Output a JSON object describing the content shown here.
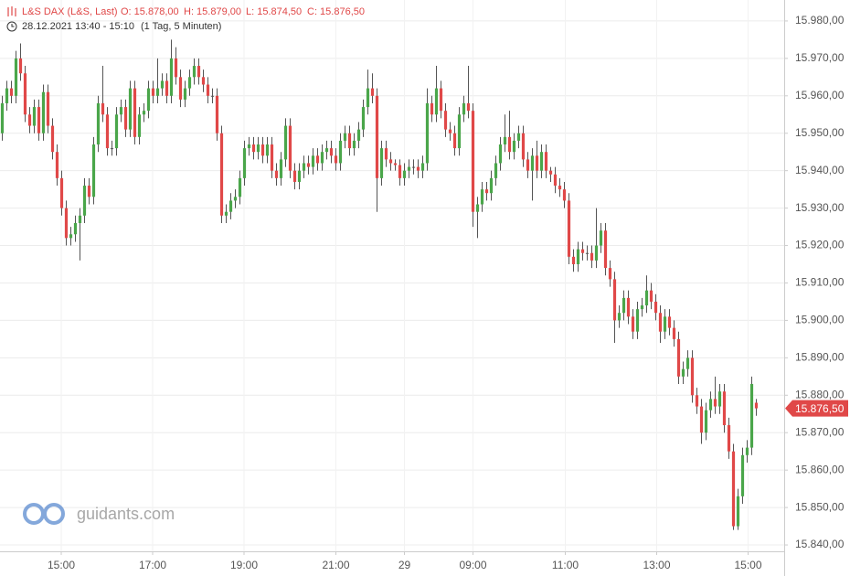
{
  "chart_data": {
    "type": "candlestick",
    "title": "L&S DAX (L&S, Last)",
    "ohlc_info": [
      "O: 15.878,00",
      "H: 15.879,00",
      "L: 15.874,50",
      "C: 15.876,50"
    ],
    "period": "28.12.2021 13:40 - 15:10",
    "interval": "(1 Tag, 5 Minuten)",
    "watermark": "guidants.com",
    "up_color": "#4aa64a",
    "down_color": "#e04848",
    "wick_color": "#555555",
    "grid": true,
    "last_price": {
      "value": 15876.5,
      "label": "15.876,50"
    },
    "xlim": [
      -0.5,
      171.1
    ],
    "xticks": [
      {
        "value": 12.9,
        "label": "15:00"
      },
      {
        "value": 32.9,
        "label": "17:00"
      },
      {
        "value": 52.9,
        "label": "19:00"
      },
      {
        "value": 73,
        "label": "21:00"
      },
      {
        "value": 88,
        "label": "29"
      },
      {
        "value": 103,
        "label": "09:00"
      },
      {
        "value": 123.2,
        "label": "11:00"
      },
      {
        "value": 143.2,
        "label": "13:00"
      },
      {
        "value": 163.2,
        "label": "15:00"
      }
    ],
    "ylim": [
      15838.3,
      15985.6
    ],
    "yticks": [
      {
        "value": 15840,
        "label": "15.840,00"
      },
      {
        "value": 15850,
        "label": "15.850,00"
      },
      {
        "value": 15860,
        "label": "15.860,00"
      },
      {
        "value": 15870,
        "label": "15.870,00"
      },
      {
        "value": 15880,
        "label": "15.880,00"
      },
      {
        "value": 15890,
        "label": "15.890,00"
      },
      {
        "value": 15900,
        "label": "15.900,00"
      },
      {
        "value": 15910,
        "label": "15.910,00"
      },
      {
        "value": 15920,
        "label": "15.920,00"
      },
      {
        "value": 15930,
        "label": "15.930,00"
      },
      {
        "value": 15940,
        "label": "15.940,00"
      },
      {
        "value": 15950,
        "label": "15.950,00"
      },
      {
        "value": 15960,
        "label": "15.960,00"
      },
      {
        "value": 15970,
        "label": "15.970,00"
      },
      {
        "value": 15980,
        "label": "15.980,00"
      }
    ],
    "open": [
      15950,
      15958,
      15962,
      15960,
      15970,
      15966,
      15955,
      15952,
      15957,
      15950,
      15961,
      15952,
      15945,
      15938,
      15930,
      15922,
      15923,
      15926,
      15928,
      15936,
      15933,
      15947,
      15958,
      15955,
      15946,
      15946,
      15955,
      15957,
      15951,
      15962,
      15949,
      15955,
      15956,
      15962,
      15960,
      15962,
      15964,
      15960,
      15970,
      15965,
      15959,
      15962,
      15965,
      15968,
      15965,
      15963,
      15960,
      15960,
      15950,
      15928,
      15929,
      15932,
      15933,
      15938,
      15946,
      15947,
      15945,
      15947,
      15944,
      15947,
      15940,
      15938,
      15943,
      15952,
      15940,
      15937,
      15940,
      15942,
      15941,
      15944,
      15942,
      15945,
      15946,
      15944,
      15942,
      15948,
      15950,
      15946,
      15948,
      15951,
      15957,
      15962,
      15960,
      15938,
      15946,
      15943,
      15942,
      15941.5,
      15938,
      15940,
      15941,
      15941,
      15940,
      15942,
      15958,
      15955,
      15962,
      15956,
      15951,
      15950,
      15946,
      15955,
      15958,
      15956,
      15929,
      15931,
      15935,
      15934,
      15938,
      15942,
      15947,
      15949,
      15945,
      15948,
      15950,
      15943,
      15940,
      15944,
      15940,
      15945,
      15940,
      15939,
      15936,
      15935,
      15932,
      15917,
      15915,
      15919,
      15918,
      15918,
      15916,
      15920,
      15924,
      15914,
      15911,
      15900,
      15902,
      15906,
      15901,
      15897,
      15903,
      15904,
      15908,
      15905,
      15902,
      15897,
      15901,
      15898,
      15895,
      15885,
      15887,
      15890,
      15880,
      15877,
      15870,
      15876,
      15879,
      15877,
      15881,
      15872,
      15865,
      15845,
      15853,
      15864,
      15866,
      15878
    ],
    "high": [
      15960,
      15964,
      15964,
      15972,
      15974,
      15968,
      15957,
      15959,
      15959,
      15963,
      15963,
      15954,
      15947,
      15940,
      15932,
      15925,
      15928,
      15930,
      15938,
      15938,
      15949,
      15960,
      15968,
      15957,
      15948,
      15957,
      15959,
      15959,
      15964,
      15964,
      15957,
      15958,
      15964,
      15964,
      15970,
      15966,
      15966,
      15975,
      15973,
      15967,
      15964,
      15967,
      15970,
      15970,
      15967,
      15965,
      15962,
      15962,
      15952,
      15931,
      15934,
      15935,
      15940,
      15948,
      15949,
      15949,
      15949,
      15949,
      15949,
      15949,
      15942,
      15945,
      15954,
      15954,
      15942,
      15942,
      15944,
      15944,
      15946,
      15946,
      15947,
      15948,
      15948,
      15946,
      15950,
      15952,
      15952,
      15950,
      15953,
      15959,
      15967,
      15966,
      15962,
      15948,
      15948,
      15945,
      15943,
      15943,
      15942,
      15943,
      15943,
      15943,
      15944,
      15962,
      15960,
      15968,
      15964,
      15958,
      15953,
      15952,
      15957,
      15960,
      15968,
      15958,
      15933,
      15937,
      15937,
      15940,
      15944,
      15949,
      15955,
      15956,
      15950,
      15952,
      15952,
      15945,
      15946,
      15948,
      15947,
      15947,
      15941,
      15941,
      15938,
      15937,
      15934,
      15919,
      15921,
      15921,
      15920,
      15920,
      15930,
      15926,
      15926,
      15916,
      15913,
      15904,
      15908,
      15908,
      15903,
      15905,
      15906,
      15912,
      15910,
      15907,
      15904,
      15903,
      15903,
      15900,
      15897,
      15889,
      15892,
      15892,
      15882,
      15879,
      15878,
      15881,
      15885,
      15883,
      15883,
      15874,
      15867,
      15855,
      15866,
      15868,
      15885,
      15879
    ],
    "low": [
      15948,
      15956,
      15958,
      15958,
      15964,
      15953,
      15950,
      15950,
      15948,
      15948,
      15950,
      15943,
      15936,
      15928,
      15920,
      15920,
      15921,
      15916,
      15926,
      15931,
      15931,
      15945,
      15953,
      15944,
      15944,
      15944,
      15953,
      15949,
      15949,
      15947,
      15947,
      15953,
      15954,
      15958,
      15958,
      15960,
      15958,
      15958,
      15963,
      15957,
      15957,
      15960,
      15963,
      15963,
      15961,
      15958,
      15958,
      15948,
      15926,
      15926,
      15927,
      15930,
      15931,
      15936,
      15944,
      15943,
      15943,
      15942,
      15942,
      15938,
      15936,
      15936,
      15941,
      15938,
      15935,
      15935,
      15938,
      15939,
      15939,
      15940,
      15940,
      15943,
      15942,
      15940,
      15940,
      15946,
      15944,
      15944,
      15946,
      15949,
      15955,
      15958,
      15929,
      15936,
      15941,
      15940,
      15940,
      15936,
      15936,
      15938,
      15939,
      15938,
      15938,
      15940,
      15953,
      15953,
      15954,
      15949,
      15948,
      15944,
      15944,
      15953,
      15954,
      15925,
      15922,
      15929,
      15932,
      15932,
      15936,
      15940,
      15945,
      15943,
      15943,
      15946,
      15941,
      15938,
      15932,
      15938,
      15938,
      15938,
      15937,
      15934,
      15933,
      15930,
      15915,
      15913,
      15913,
      15916,
      15916,
      15914,
      15914,
      15918,
      15912,
      15909,
      15894,
      15898,
      15900,
      15899,
      15895,
      15895,
      15901,
      15902,
      15903,
      15900,
      15894,
      15895,
      15896,
      15893,
      15883,
      15883,
      15885,
      15878,
      15875,
      15867,
      15868,
      15874,
      15875,
      15875,
      15870,
      15863,
      15844,
      15844,
      15851,
      15862,
      15864,
      15874.5
    ],
    "close": [
      15958,
      15962,
      15960,
      15970,
      15966,
      15955,
      15952,
      15957,
      15950,
      15961,
      15952,
      15945,
      15938,
      15930,
      15922,
      15923,
      15926,
      15928,
      15936,
      15933,
      15947,
      15958,
      15955,
      15946,
      15946,
      15955,
      15957,
      15951,
      15962,
      15949,
      15955,
      15956,
      15962,
      15960,
      15962,
      15964,
      15960,
      15970,
      15965,
      15959,
      15962,
      15965,
      15968,
      15965,
      15963,
      15960,
      15960,
      15950,
      15928,
      15929,
      15932,
      15933,
      15938,
      15946,
      15947,
      15945,
      15947,
      15944,
      15947,
      15940,
      15938,
      15943,
      15952,
      15940,
      15937,
      15940,
      15942,
      15941,
      15944,
      15942,
      15945,
      15946,
      15944,
      15942,
      15948,
      15950,
      15946,
      15948,
      15951,
      15957,
      15962,
      15960,
      15938,
      15946,
      15943,
      15942,
      15941.5,
      15938,
      15940,
      15941,
      15941,
      15940,
      15942,
      15958,
      15955,
      15962,
      15956,
      15951,
      15950,
      15946,
      15955,
      15958,
      15956,
      15929,
      15931,
      15935,
      15934,
      15938,
      15942,
      15947,
      15949,
      15945,
      15948,
      15950,
      15943,
      15940,
      15944,
      15940,
      15945,
      15940,
      15939,
      15936,
      15935,
      15932,
      15917,
      15915,
      15919,
      15918,
      15918,
      15916,
      15920,
      15924,
      15914,
      15911,
      15900,
      15902,
      15906,
      15901,
      15897,
      15903,
      15904,
      15908,
      15905,
      15902,
      15897,
      15901,
      15898,
      15895,
      15885,
      15887,
      15890,
      15880,
      15877,
      15870,
      15876,
      15879,
      15877,
      15881,
      15872,
      15865,
      15845,
      15853,
      15864,
      15866,
      15883,
      15876.5
    ]
  }
}
